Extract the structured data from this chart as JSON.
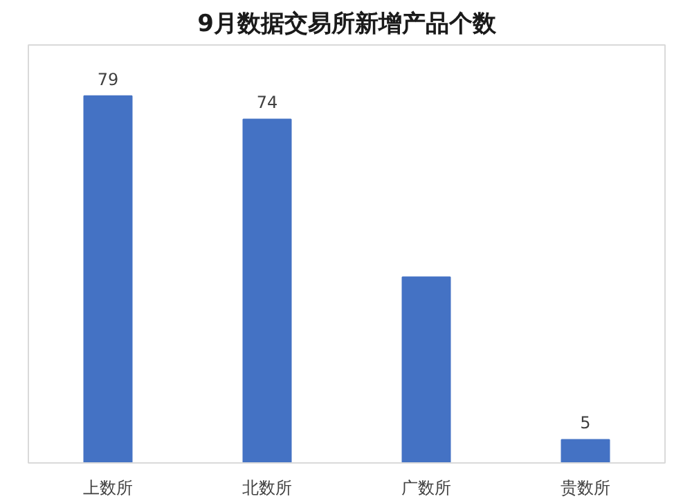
{
  "chart_data": {
    "type": "bar",
    "title": "9月数据交易所新增产品个数",
    "categories": [
      "上数所",
      "北数所",
      "广数所",
      "贵数所"
    ],
    "values": [
      79,
      74,
      40,
      5
    ],
    "value_labels": [
      "79",
      "74",
      null,
      "5"
    ],
    "color": "#4472c4",
    "ylim": [
      0,
      90
    ],
    "tick_labels": "x",
    "grid": false
  }
}
